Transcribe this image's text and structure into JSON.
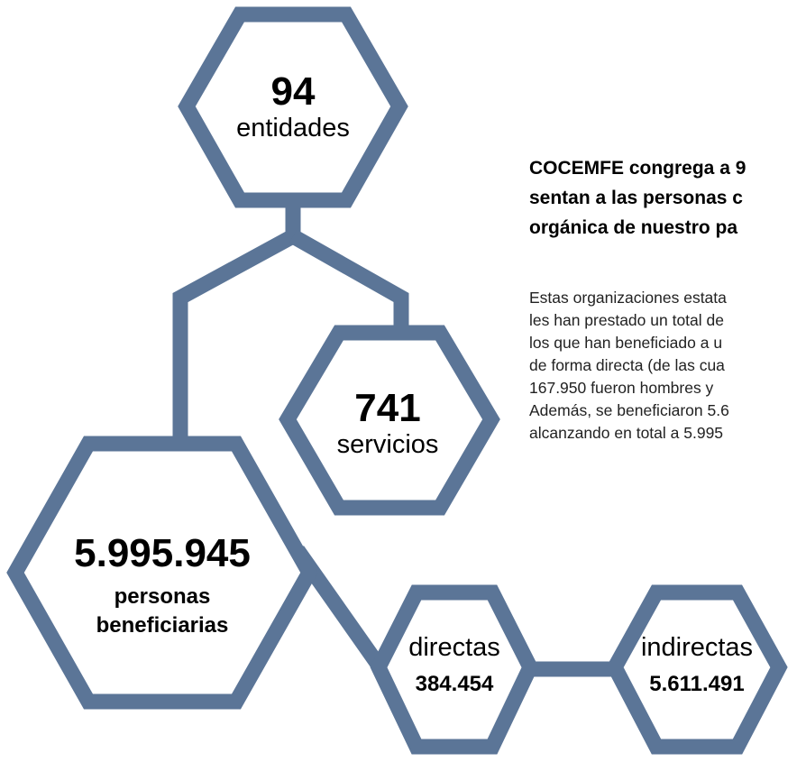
{
  "nodes": [
    {
      "value": "94",
      "label": "entidades"
    },
    {
      "value": "741",
      "label": "servicios"
    },
    {
      "value": "5.995.945",
      "label": "personas beneficiarias"
    },
    {
      "label": "directas",
      "value": "384.454"
    },
    {
      "label": "indirectas",
      "value": "5.611.491"
    }
  ],
  "text": {
    "heading": [
      "COCEMFE congrega a 9",
      "sentan a las personas c",
      "orgánica de nuestro pa"
    ],
    "body": [
      "Estas organizaciones estata",
      "les han prestado un total de",
      "los que han beneficiado a u",
      "de forma directa (de las cua",
      "167.950 fueron hombres y",
      "Además, se beneficiaron 5.6",
      "alcanzando en total a 5.995"
    ]
  }
}
